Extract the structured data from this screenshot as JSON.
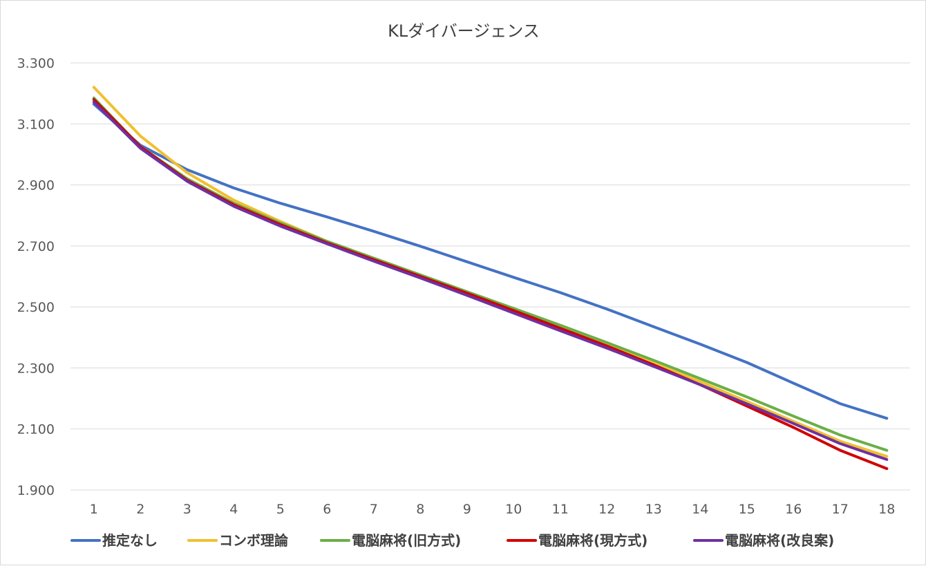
{
  "chart_data": {
    "type": "line",
    "title": "KLダイバージェンス",
    "xlabel": "",
    "ylabel": "",
    "categories": [
      "1",
      "2",
      "3",
      "4",
      "5",
      "6",
      "7",
      "8",
      "9",
      "10",
      "11",
      "12",
      "13",
      "14",
      "15",
      "16",
      "17",
      "18"
    ],
    "ylim": [
      1.9,
      3.3
    ],
    "yticks": [
      "3.300",
      "3.100",
      "2.900",
      "2.700",
      "2.500",
      "2.300",
      "2.100",
      "1.900"
    ],
    "grid": true,
    "legend_position": "bottom",
    "series": [
      {
        "name": "推定なし",
        "color": "#4472c4",
        "values": [
          3.165,
          3.03,
          2.95,
          2.89,
          2.84,
          2.795,
          2.748,
          2.699,
          2.648,
          2.597,
          2.547,
          2.493,
          2.435,
          2.378,
          2.318,
          2.25,
          2.183,
          2.135
        ]
      },
      {
        "name": "コンボ理論",
        "color": "#f0c030",
        "values": [
          3.22,
          3.06,
          2.94,
          2.85,
          2.78,
          2.715,
          2.655,
          2.6,
          2.54,
          2.485,
          2.43,
          2.375,
          2.315,
          2.255,
          2.19,
          2.125,
          2.06,
          2.01
        ]
      },
      {
        "name": "電脳麻将(旧方式)",
        "color": "#6aaf47",
        "values": [
          3.185,
          3.025,
          2.92,
          2.84,
          2.775,
          2.715,
          2.66,
          2.605,
          2.55,
          2.495,
          2.44,
          2.383,
          2.325,
          2.265,
          2.205,
          2.142,
          2.08,
          2.03
        ]
      },
      {
        "name": "電脳麻将(現方式)",
        "color": "#d00000",
        "values": [
          3.18,
          3.025,
          2.915,
          2.835,
          2.77,
          2.71,
          2.655,
          2.6,
          2.545,
          2.488,
          2.43,
          2.372,
          2.31,
          2.245,
          2.175,
          2.105,
          2.03,
          1.97
        ]
      },
      {
        "name": "電脳麻将(改良案)",
        "color": "#7030a0",
        "values": [
          3.172,
          3.02,
          2.912,
          2.83,
          2.765,
          2.707,
          2.65,
          2.595,
          2.538,
          2.48,
          2.422,
          2.365,
          2.305,
          2.245,
          2.182,
          2.118,
          2.052,
          2.0
        ]
      }
    ]
  }
}
